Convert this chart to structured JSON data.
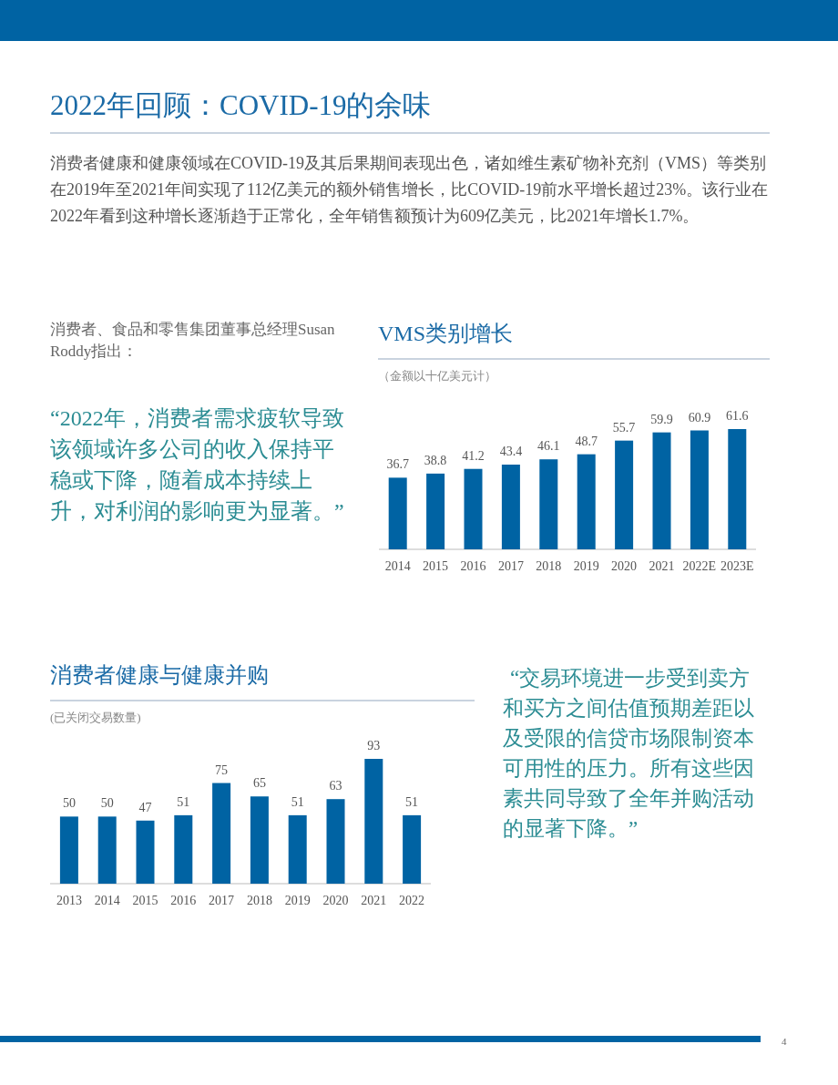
{
  "chart_data": [
    {
      "type": "other",
      "title": "2022年回顾：COVID-19的余味",
      "annotations": [
        "消费者健康和健康领域在COVID-19及其后果期间表现出色，诸如维生素矿物补充剂（VMS）等类别在2019年至2021年间实现了112亿美元的额外销售增长，比COVID-19前水平增长超过23%。该行业在2022年看到这种增长逐渐趋于正常化，全年销售额预计为609亿美元，比2021年增长1.7%。"
      ]
    },
    {
      "type": "other",
      "annotations": [
        "消费者、食品和零售集团董事总经理Susan Roddy指出：",
        "“2022年，消费者需求疲软导致该领域许多公司的收入保持平稳或下降，随着成本持续上升，对利润的影响更为显著。”"
      ]
    },
    {
      "type": "bar",
      "title": "VMS类别增长",
      "subtitle": "（金额以十亿美元计）",
      "categories": [
        "2014",
        "2015",
        "2016",
        "2017",
        "2018",
        "2019",
        "2020",
        "2021",
        "2022E",
        "2023E"
      ],
      "values": [
        36.7,
        38.8,
        41.2,
        43.4,
        46.1,
        48.7,
        55.7,
        59.9,
        60.9,
        61.6
      ],
      "color": "#0063a3",
      "data_labels": true
    },
    {
      "type": "bar",
      "title": "消费者健康与健康并购",
      "subtitle": "(已关闭交易数量)",
      "categories": [
        "2013",
        "2014",
        "2015",
        "2016",
        "2017",
        "2018",
        "2019",
        "2020",
        "2021",
        "2022"
      ],
      "values": [
        50,
        50,
        47,
        51,
        75,
        65,
        51,
        63,
        93,
        51
      ],
      "color": "#0063a3",
      "data_labels": true
    },
    {
      "type": "other",
      "annotations": [
        "“交易环境进一步受到卖方和买方之间估值预期差距以及受限的信贷市场限制资本可用性的压力。所有这些因素共同导致了全年并购活动的显著下降。”",
        "4"
      ]
    }
  ]
}
